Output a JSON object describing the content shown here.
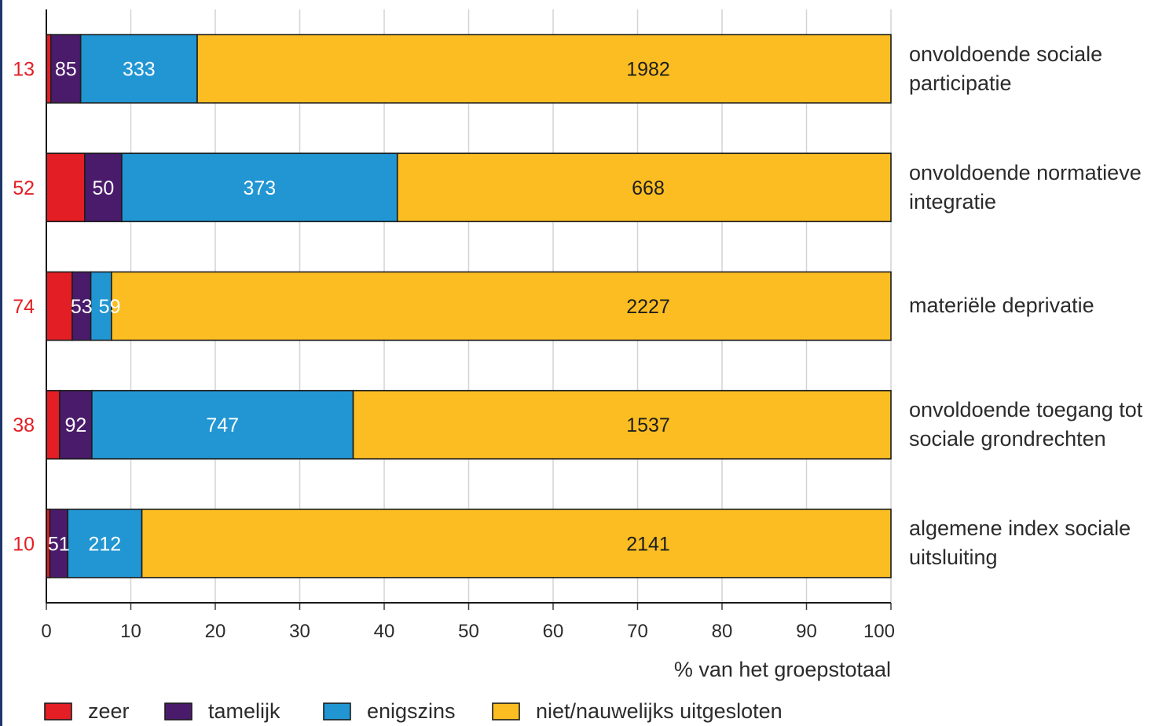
{
  "chart_data": {
    "type": "bar",
    "orientation": "horizontal",
    "stacked": "percent",
    "categories": [
      "onvoldoende sociale participatie",
      "onvoldoende normatieve integratie",
      "materiële deprivatie",
      "onvoldoende toegang tot sociale grondrechten",
      "algemene index sociale uitsluiting"
    ],
    "series": [
      {
        "name": "zeer",
        "color": "#e31e24",
        "values": [
          13,
          52,
          74,
          38,
          10
        ]
      },
      {
        "name": "tamelijk",
        "color": "#4a1b6b",
        "values": [
          85,
          50,
          53,
          92,
          51
        ]
      },
      {
        "name": "enigszins",
        "color": "#2196d3",
        "values": [
          333,
          373,
          59,
          747,
          212
        ]
      },
      {
        "name": "niet/nauwelijks uitgesloten",
        "color": "#fbbd22",
        "values": [
          1982,
          668,
          2227,
          1537,
          2141
        ]
      }
    ],
    "xlabel": "% van het groepstotaal",
    "xlim": [
      0,
      100
    ],
    "xticks": [
      0,
      10,
      20,
      30,
      40,
      50,
      60,
      70,
      80,
      90,
      100
    ],
    "grid": true,
    "legend": "bottom-left"
  }
}
